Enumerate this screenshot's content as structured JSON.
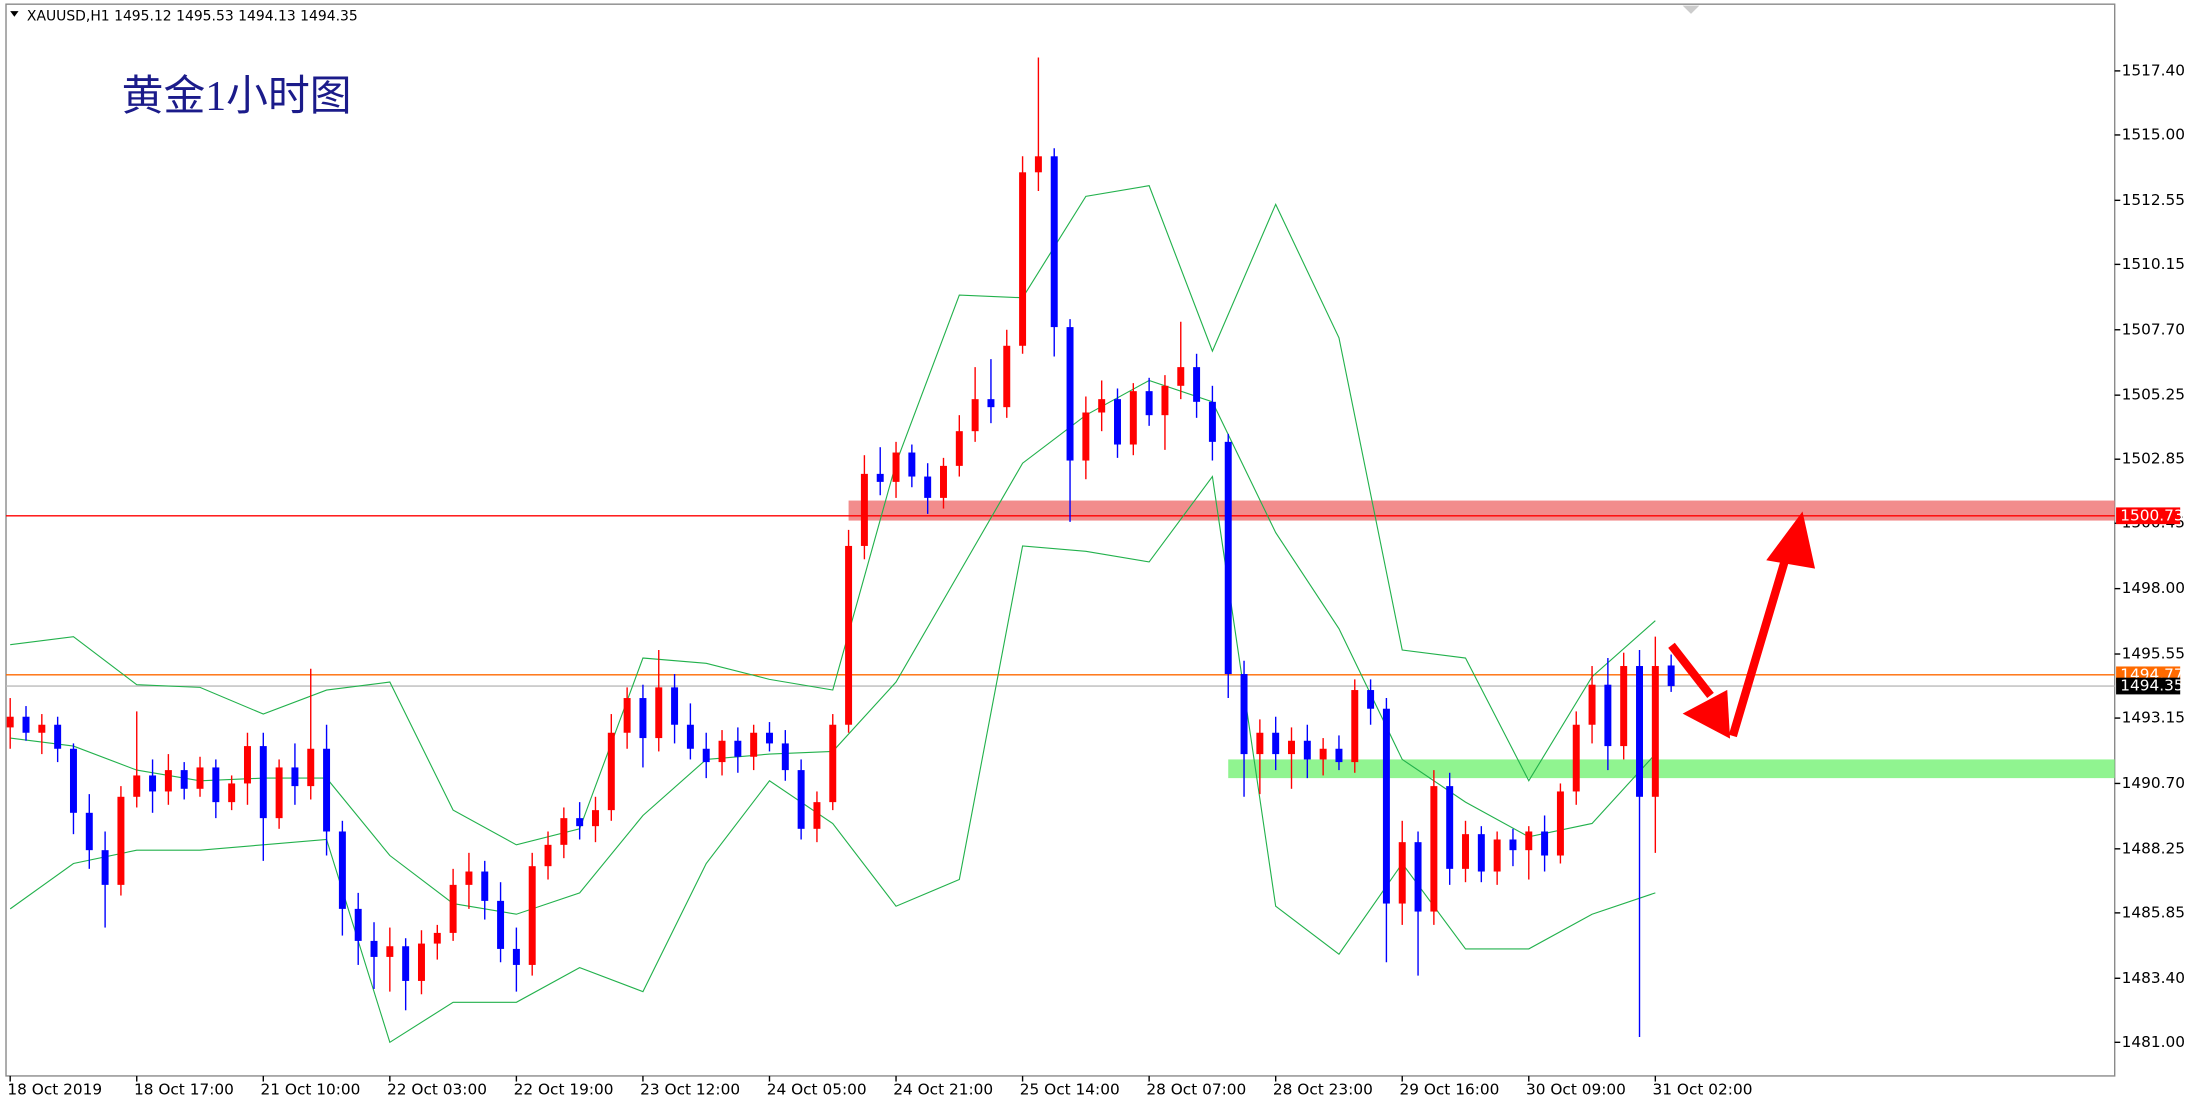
{
  "chart_data": {
    "type": "candlestick",
    "symbol": "XAUUSD,H1",
    "annotation": "黄金1小时图",
    "categories": [
      "18 Oct 2019",
      null,
      null,
      null,
      null,
      null,
      null,
      null,
      "18 Oct 17:00",
      null,
      null,
      null,
      null,
      null,
      null,
      null,
      "21 Oct 10:00",
      null,
      null,
      null,
      null,
      null,
      null,
      null,
      "22 Oct 03:00",
      null,
      null,
      null,
      null,
      null,
      null,
      null,
      "22 Oct 19:00",
      null,
      null,
      null,
      null,
      null,
      null,
      null,
      "23 Oct 12:00",
      null,
      null,
      null,
      null,
      null,
      null,
      null,
      "24 Oct 05:00",
      null,
      null,
      null,
      null,
      null,
      null,
      null,
      "24 Oct 21:00",
      null,
      null,
      null,
      null,
      null,
      null,
      null,
      "25 Oct 14:00",
      null,
      null,
      null,
      null,
      null,
      null,
      null,
      "28 Oct 07:00",
      null,
      null,
      null,
      null,
      null,
      null,
      null,
      "28 Oct 23:00",
      null,
      null,
      null,
      null,
      null,
      null,
      null,
      "29 Oct 16:00",
      null,
      null,
      null,
      null,
      null,
      null,
      null,
      "30 Oct 09:00",
      null,
      null,
      null,
      null,
      null,
      null,
      null,
      "31 Oct 02:00",
      null
    ],
    "open": [
      1492.8,
      1493.2,
      1492.6,
      1492.9,
      1492.0,
      1489.6,
      1488.2,
      1486.9,
      1490.2,
      1491.0,
      1490.4,
      1491.2,
      1490.5,
      1491.3,
      1490.0,
      1490.7,
      1492.1,
      1489.4,
      1491.3,
      1490.6,
      1492.0,
      1488.9,
      1486.0,
      1484.8,
      1484.2,
      1484.6,
      1483.3,
      1484.7,
      1485.1,
      1486.9,
      1487.4,
      1486.3,
      1484.5,
      1483.9,
      1487.6,
      1488.4,
      1489.4,
      1489.1,
      1489.7,
      1492.6,
      1493.9,
      1492.4,
      1494.3,
      1492.9,
      1492.0,
      1491.5,
      1492.3,
      1491.7,
      1492.6,
      1492.2,
      1491.2,
      1489.0,
      1490.0,
      1492.9,
      1499.6,
      1502.3,
      1502.0,
      1503.1,
      1502.2,
      1501.4,
      1502.6,
      1503.9,
      1505.1,
      1504.8,
      1507.1,
      1513.6,
      1514.2,
      1507.8,
      1502.8,
      1504.6,
      1505.1,
      1503.4,
      1505.4,
      1504.5,
      1505.6,
      1506.3,
      1505.0,
      1503.5,
      1494.8,
      1491.8,
      1492.6,
      1491.8,
      1492.3,
      1491.6,
      1492.0,
      1491.5,
      1494.2,
      1493.5,
      1486.2,
      1488.5,
      1485.9,
      1490.6,
      1487.5,
      1488.8,
      1487.4,
      1488.6,
      1488.2,
      1488.9,
      1488.0,
      1490.4,
      1492.9,
      1494.4,
      1492.1,
      1495.1,
      1490.2,
      1495.12
    ],
    "high": [
      1493.9,
      1493.6,
      1493.3,
      1493.2,
      1492.2,
      1490.3,
      1488.9,
      1490.6,
      1493.4,
      1491.6,
      1491.8,
      1491.5,
      1491.7,
      1491.6,
      1491.0,
      1492.6,
      1492.6,
      1491.6,
      1492.2,
      1495.0,
      1492.9,
      1489.3,
      1486.6,
      1485.5,
      1485.3,
      1484.9,
      1485.2,
      1485.4,
      1487.5,
      1488.1,
      1487.8,
      1487.0,
      1485.3,
      1488.1,
      1488.9,
      1489.8,
      1490.0,
      1490.2,
      1493.3,
      1494.3,
      1494.4,
      1495.7,
      1494.8,
      1493.7,
      1492.6,
      1492.7,
      1492.8,
      1492.9,
      1493.0,
      1492.7,
      1491.6,
      1490.4,
      1493.3,
      1500.2,
      1503.0,
      1503.3,
      1503.5,
      1503.4,
      1502.7,
      1502.9,
      1504.5,
      1506.3,
      1506.6,
      1507.7,
      1514.2,
      1517.9,
      1514.5,
      1508.1,
      1505.2,
      1505.8,
      1505.5,
      1505.7,
      1505.9,
      1506.0,
      1508.0,
      1506.8,
      1505.6,
      1503.8,
      1495.3,
      1493.1,
      1493.2,
      1492.8,
      1492.9,
      1492.4,
      1492.5,
      1494.6,
      1494.6,
      1493.9,
      1489.3,
      1488.9,
      1491.2,
      1491.1,
      1489.3,
      1489.1,
      1488.9,
      1489.0,
      1489.1,
      1489.5,
      1490.7,
      1493.4,
      1495.1,
      1495.4,
      1495.6,
      1495.7,
      1496.2,
      1495.53
    ],
    "low": [
      1492.0,
      1492.3,
      1491.8,
      1491.5,
      1488.8,
      1487.5,
      1485.3,
      1486.5,
      1489.8,
      1489.6,
      1489.9,
      1490.1,
      1490.2,
      1489.4,
      1489.7,
      1489.9,
      1487.8,
      1489.0,
      1489.9,
      1490.1,
      1488.0,
      1485.0,
      1483.9,
      1483.0,
      1482.9,
      1482.2,
      1482.8,
      1484.1,
      1484.8,
      1486.0,
      1485.6,
      1484.0,
      1482.9,
      1483.5,
      1487.1,
      1487.9,
      1488.6,
      1488.5,
      1489.3,
      1492.0,
      1491.3,
      1491.9,
      1492.2,
      1491.6,
      1490.9,
      1491.0,
      1491.1,
      1491.2,
      1491.9,
      1490.8,
      1488.6,
      1488.5,
      1489.7,
      1492.6,
      1499.1,
      1501.5,
      1501.4,
      1501.8,
      1500.8,
      1501.0,
      1502.2,
      1503.5,
      1504.2,
      1504.4,
      1506.8,
      1512.9,
      1506.7,
      1500.5,
      1502.1,
      1503.9,
      1502.9,
      1503.0,
      1504.1,
      1503.2,
      1505.1,
      1504.4,
      1502.8,
      1493.9,
      1490.2,
      1490.3,
      1491.2,
      1490.5,
      1490.9,
      1491.0,
      1491.2,
      1491.1,
      1492.9,
      1484.0,
      1485.4,
      1483.5,
      1485.4,
      1486.9,
      1487.0,
      1487.0,
      1486.9,
      1487.6,
      1487.1,
      1487.4,
      1487.7,
      1489.9,
      1492.2,
      1491.2,
      1491.6,
      1481.2,
      1488.1,
      1494.13
    ],
    "close": [
      1493.2,
      1492.6,
      1492.9,
      1492.0,
      1489.6,
      1488.2,
      1486.9,
      1490.2,
      1491.0,
      1490.4,
      1491.2,
      1490.5,
      1491.3,
      1490.0,
      1490.7,
      1492.1,
      1489.4,
      1491.3,
      1490.6,
      1492.0,
      1488.9,
      1486.0,
      1484.8,
      1484.2,
      1484.6,
      1483.3,
      1484.7,
      1485.1,
      1486.9,
      1487.4,
      1486.3,
      1484.5,
      1483.9,
      1487.6,
      1488.4,
      1489.4,
      1489.1,
      1489.7,
      1492.6,
      1493.9,
      1492.4,
      1494.3,
      1492.9,
      1492.0,
      1491.5,
      1492.3,
      1491.7,
      1492.6,
      1492.2,
      1491.2,
      1489.0,
      1490.0,
      1492.9,
      1499.6,
      1502.3,
      1502.0,
      1503.1,
      1502.2,
      1501.4,
      1502.6,
      1503.9,
      1505.1,
      1504.8,
      1507.1,
      1513.6,
      1514.2,
      1507.8,
      1502.8,
      1504.6,
      1505.1,
      1503.4,
      1505.4,
      1504.5,
      1505.6,
      1506.3,
      1505.0,
      1503.5,
      1494.8,
      1491.8,
      1492.6,
      1491.8,
      1492.3,
      1491.6,
      1492.0,
      1491.5,
      1494.2,
      1493.5,
      1486.2,
      1488.5,
      1485.9,
      1490.6,
      1487.5,
      1488.8,
      1487.4,
      1488.6,
      1488.2,
      1488.9,
      1488.0,
      1490.4,
      1492.9,
      1494.4,
      1492.1,
      1495.1,
      1490.2,
      1495.1,
      1494.35
    ],
    "up_color": "#ff0000",
    "down_color": "#0000ff",
    "bands": {
      "color": "#22b14c",
      "x": [
        0,
        4,
        8,
        12,
        16,
        20,
        24,
        28,
        32,
        36,
        40,
        44,
        48,
        52,
        56,
        60,
        64,
        68,
        72,
        76,
        80,
        84,
        88,
        92,
        96,
        100,
        104
      ],
      "upper": [
        1495.9,
        1496.2,
        1494.4,
        1494.3,
        1493.3,
        1494.2,
        1494.5,
        1489.7,
        1488.4,
        1489.0,
        1495.4,
        1495.2,
        1494.6,
        1494.2,
        1502.7,
        1509.0,
        1508.9,
        1512.7,
        1513.1,
        1506.9,
        1512.4,
        1507.4,
        1495.7,
        1495.4,
        1490.8,
        1494.7,
        1496.8
      ],
      "middle": [
        1492.4,
        1492.1,
        1491.2,
        1490.8,
        1490.9,
        1490.9,
        1488.0,
        1486.2,
        1485.8,
        1486.6,
        1489.5,
        1491.6,
        1491.8,
        1491.9,
        1494.5,
        1498.6,
        1502.7,
        1504.5,
        1505.8,
        1505.0,
        1500.1,
        1496.5,
        1491.6,
        1490.0,
        1488.7,
        1489.2,
        1491.8
      ],
      "lower": [
        1486.0,
        1487.7,
        1488.2,
        1488.2,
        1488.4,
        1488.6,
        1481.0,
        1482.5,
        1482.5,
        1483.8,
        1482.9,
        1487.7,
        1490.8,
        1489.2,
        1486.1,
        1487.1,
        1499.6,
        1499.4,
        1499.0,
        1502.2,
        1486.1,
        1484.3,
        1487.7,
        1484.5,
        1484.5,
        1485.8,
        1486.6
      ]
    },
    "zones": [
      {
        "from": 1500.55,
        "to": 1501.3,
        "color": "#f07878"
      },
      {
        "from": 1490.9,
        "to": 1491.6,
        "color": "#7cf27c"
      }
    ],
    "levels": [
      {
        "value": 1500.73,
        "color": "#ff0000"
      },
      {
        "value": 1494.77,
        "color": "#ff6a00"
      }
    ],
    "last_color": "#000000",
    "ylim": [
      1479.74,
      1519.9
    ],
    "yticks": [
      {
        "value": 1517.4,
        "label": "1517.40"
      },
      {
        "value": 1515.0,
        "label": "1515.00"
      },
      {
        "value": 1512.55,
        "label": "1512.55"
      },
      {
        "value": 1510.15,
        "label": "1510.15"
      },
      {
        "value": 1507.7,
        "label": "1507.70"
      },
      {
        "value": 1505.25,
        "label": "1505.25"
      },
      {
        "value": 1502.85,
        "label": "1502.85"
      },
      {
        "value": 1500.45,
        "label": "1500.45"
      },
      {
        "value": 1498.0,
        "label": "1498.00"
      },
      {
        "value": 1495.55,
        "label": "1495.55"
      },
      {
        "value": 1493.15,
        "label": "1493.15"
      },
      {
        "value": 1490.7,
        "label": "1490.70"
      },
      {
        "value": 1488.25,
        "label": "1488.25"
      },
      {
        "value": 1485.85,
        "label": "1485.85"
      },
      {
        "value": 1483.4,
        "label": "1483.40"
      },
      {
        "value": 1481.0,
        "label": "1481.00"
      }
    ]
  }
}
